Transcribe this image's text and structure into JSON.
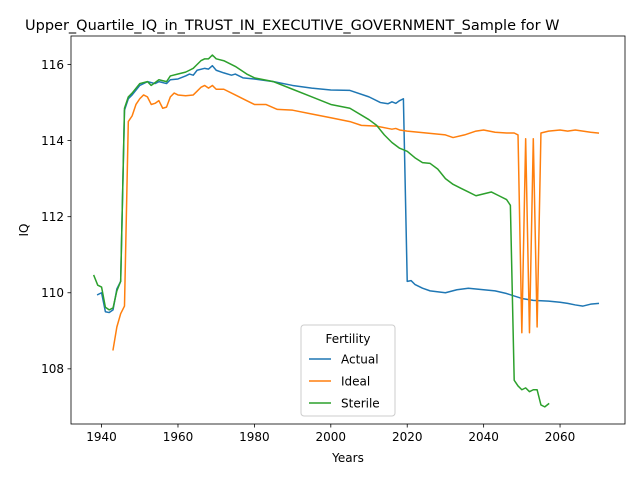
{
  "chart_data": {
    "type": "line",
    "title": "Upper_Quartile_IQ_in_TRUST_IN_EXECUTIVE_GOVERNMENT_Sample for W",
    "xlabel": "Years",
    "ylabel": "IQ",
    "xlim": [
      1932,
      2077
    ],
    "ylim": [
      106.55,
      116.75
    ],
    "xticks": [
      1940,
      1960,
      1980,
      2000,
      2020,
      2040,
      2060
    ],
    "yticks": [
      108,
      110,
      112,
      114,
      116
    ],
    "grid": false,
    "legend": {
      "title": "Fertility",
      "position": "bottom-center"
    },
    "series": [
      {
        "name": "Actual",
        "color": "#1f77b4",
        "points": [
          [
            1939,
            109.95
          ],
          [
            1940,
            110.0
          ],
          [
            1941,
            109.5
          ],
          [
            1942,
            109.48
          ],
          [
            1943,
            109.55
          ],
          [
            1944,
            110.1
          ],
          [
            1945,
            110.3
          ],
          [
            1946,
            114.8
          ],
          [
            1947,
            115.1
          ],
          [
            1948,
            115.2
          ],
          [
            1950,
            115.45
          ],
          [
            1952,
            115.55
          ],
          [
            1954,
            115.5
          ],
          [
            1955,
            115.55
          ],
          [
            1957,
            115.5
          ],
          [
            1958,
            115.6
          ],
          [
            1960,
            115.62
          ],
          [
            1962,
            115.7
          ],
          [
            1963,
            115.75
          ],
          [
            1964,
            115.72
          ],
          [
            1965,
            115.85
          ],
          [
            1967,
            115.9
          ],
          [
            1968,
            115.88
          ],
          [
            1969,
            115.97
          ],
          [
            1970,
            115.85
          ],
          [
            1972,
            115.78
          ],
          [
            1974,
            115.72
          ],
          [
            1975,
            115.75
          ],
          [
            1977,
            115.65
          ],
          [
            1980,
            115.62
          ],
          [
            1985,
            115.55
          ],
          [
            1990,
            115.45
          ],
          [
            1995,
            115.38
          ],
          [
            2000,
            115.33
          ],
          [
            2005,
            115.32
          ],
          [
            2010,
            115.15
          ],
          [
            2013,
            115.0
          ],
          [
            2015,
            114.97
          ],
          [
            2016,
            115.02
          ],
          [
            2017,
            114.98
          ],
          [
            2018,
            115.05
          ],
          [
            2019,
            115.1
          ],
          [
            2020,
            110.3
          ],
          [
            2021,
            110.32
          ],
          [
            2022,
            110.22
          ],
          [
            2024,
            110.12
          ],
          [
            2026,
            110.05
          ],
          [
            2030,
            110.0
          ],
          [
            2033,
            110.08
          ],
          [
            2036,
            110.12
          ],
          [
            2040,
            110.08
          ],
          [
            2043,
            110.05
          ],
          [
            2046,
            109.98
          ],
          [
            2050,
            109.85
          ],
          [
            2053,
            109.8
          ],
          [
            2057,
            109.78
          ],
          [
            2060,
            109.75
          ],
          [
            2062,
            109.72
          ],
          [
            2064,
            109.68
          ],
          [
            2066,
            109.65
          ],
          [
            2068,
            109.7
          ],
          [
            2070,
            109.72
          ]
        ]
      },
      {
        "name": "Ideal",
        "color": "#ff7f0e",
        "points": [
          [
            1943,
            108.5
          ],
          [
            1944,
            109.1
          ],
          [
            1945,
            109.45
          ],
          [
            1946,
            109.65
          ],
          [
            1947,
            114.5
          ],
          [
            1948,
            114.65
          ],
          [
            1949,
            114.95
          ],
          [
            1950,
            115.1
          ],
          [
            1951,
            115.2
          ],
          [
            1952,
            115.15
          ],
          [
            1953,
            114.95
          ],
          [
            1954,
            114.98
          ],
          [
            1955,
            115.05
          ],
          [
            1956,
            114.85
          ],
          [
            1957,
            114.88
          ],
          [
            1958,
            115.15
          ],
          [
            1959,
            115.25
          ],
          [
            1960,
            115.2
          ],
          [
            1962,
            115.18
          ],
          [
            1964,
            115.2
          ],
          [
            1965,
            115.3
          ],
          [
            1966,
            115.4
          ],
          [
            1967,
            115.45
          ],
          [
            1968,
            115.38
          ],
          [
            1969,
            115.45
          ],
          [
            1970,
            115.35
          ],
          [
            1972,
            115.35
          ],
          [
            1975,
            115.2
          ],
          [
            1978,
            115.05
          ],
          [
            1980,
            114.95
          ],
          [
            1983,
            114.95
          ],
          [
            1986,
            114.82
          ],
          [
            1990,
            114.8
          ],
          [
            1995,
            114.7
          ],
          [
            2000,
            114.6
          ],
          [
            2005,
            114.5
          ],
          [
            2008,
            114.4
          ],
          [
            2012,
            114.38
          ],
          [
            2015,
            114.32
          ],
          [
            2016,
            114.3
          ],
          [
            2017,
            114.32
          ],
          [
            2018,
            114.28
          ],
          [
            2020,
            114.25
          ],
          [
            2025,
            114.2
          ],
          [
            2030,
            114.15
          ],
          [
            2032,
            114.08
          ],
          [
            2035,
            114.15
          ],
          [
            2038,
            114.25
          ],
          [
            2040,
            114.28
          ],
          [
            2043,
            114.22
          ],
          [
            2046,
            114.2
          ],
          [
            2048,
            114.2
          ],
          [
            2049,
            114.15
          ],
          [
            2050,
            108.95
          ],
          [
            2051,
            114.05
          ],
          [
            2052,
            108.95
          ],
          [
            2053,
            114.05
          ],
          [
            2054,
            109.1
          ],
          [
            2055,
            114.2
          ],
          [
            2057,
            114.25
          ],
          [
            2060,
            114.28
          ],
          [
            2062,
            114.25
          ],
          [
            2064,
            114.28
          ],
          [
            2066,
            114.25
          ],
          [
            2068,
            114.22
          ],
          [
            2070,
            114.2
          ]
        ]
      },
      {
        "name": "Sterile",
        "color": "#2ca02c",
        "points": [
          [
            1938,
            110.45
          ],
          [
            1939,
            110.2
          ],
          [
            1940,
            110.15
          ],
          [
            1941,
            109.62
          ],
          [
            1942,
            109.55
          ],
          [
            1943,
            109.6
          ],
          [
            1944,
            110.05
          ],
          [
            1945,
            110.3
          ],
          [
            1946,
            114.85
          ],
          [
            1947,
            115.15
          ],
          [
            1948,
            115.25
          ],
          [
            1950,
            115.5
          ],
          [
            1952,
            115.55
          ],
          [
            1953,
            115.45
          ],
          [
            1955,
            115.6
          ],
          [
            1957,
            115.55
          ],
          [
            1958,
            115.7
          ],
          [
            1960,
            115.75
          ],
          [
            1962,
            115.8
          ],
          [
            1963,
            115.85
          ],
          [
            1964,
            115.9
          ],
          [
            1965,
            116.0
          ],
          [
            1966,
            116.1
          ],
          [
            1967,
            116.15
          ],
          [
            1968,
            116.15
          ],
          [
            1969,
            116.25
          ],
          [
            1970,
            116.15
          ],
          [
            1972,
            116.1
          ],
          [
            1975,
            115.95
          ],
          [
            1978,
            115.75
          ],
          [
            1980,
            115.65
          ],
          [
            1985,
            115.55
          ],
          [
            1990,
            115.35
          ],
          [
            1995,
            115.15
          ],
          [
            2000,
            114.95
          ],
          [
            2005,
            114.85
          ],
          [
            2010,
            114.55
          ],
          [
            2012,
            114.4
          ],
          [
            2014,
            114.15
          ],
          [
            2016,
            113.95
          ],
          [
            2018,
            113.8
          ],
          [
            2020,
            113.72
          ],
          [
            2022,
            113.55
          ],
          [
            2024,
            113.42
          ],
          [
            2026,
            113.4
          ],
          [
            2028,
            113.25
          ],
          [
            2030,
            113.0
          ],
          [
            2032,
            112.85
          ],
          [
            2034,
            112.75
          ],
          [
            2036,
            112.65
          ],
          [
            2038,
            112.55
          ],
          [
            2040,
            112.6
          ],
          [
            2042,
            112.65
          ],
          [
            2044,
            112.55
          ],
          [
            2046,
            112.45
          ],
          [
            2047,
            112.3
          ],
          [
            2048,
            107.7
          ],
          [
            2049,
            107.55
          ],
          [
            2050,
            107.45
          ],
          [
            2051,
            107.5
          ],
          [
            2052,
            107.4
          ],
          [
            2053,
            107.45
          ],
          [
            2054,
            107.45
          ],
          [
            2055,
            107.05
          ],
          [
            2056,
            107.0
          ],
          [
            2057,
            107.08
          ]
        ]
      }
    ]
  }
}
